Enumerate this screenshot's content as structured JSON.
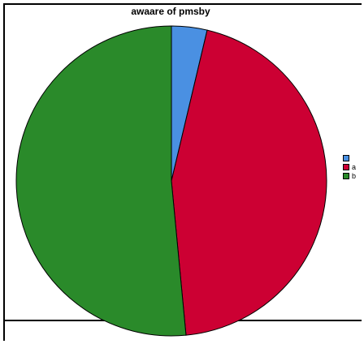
{
  "chart_data": {
    "type": "pie",
    "title": "awaare of pmsby",
    "categories": [
      "",
      "a",
      "b"
    ],
    "values": [
      3.7,
      44.8,
      51.5
    ],
    "colors": [
      "#4a90e2",
      "#cc0033",
      "#2a8a2a"
    ],
    "legend_position": "right"
  },
  "legend": {
    "items": [
      {
        "label": "",
        "color": "#4a90e2"
      },
      {
        "label": "a",
        "color": "#cc0033"
      },
      {
        "label": "b",
        "color": "#2a8a2a"
      }
    ]
  }
}
